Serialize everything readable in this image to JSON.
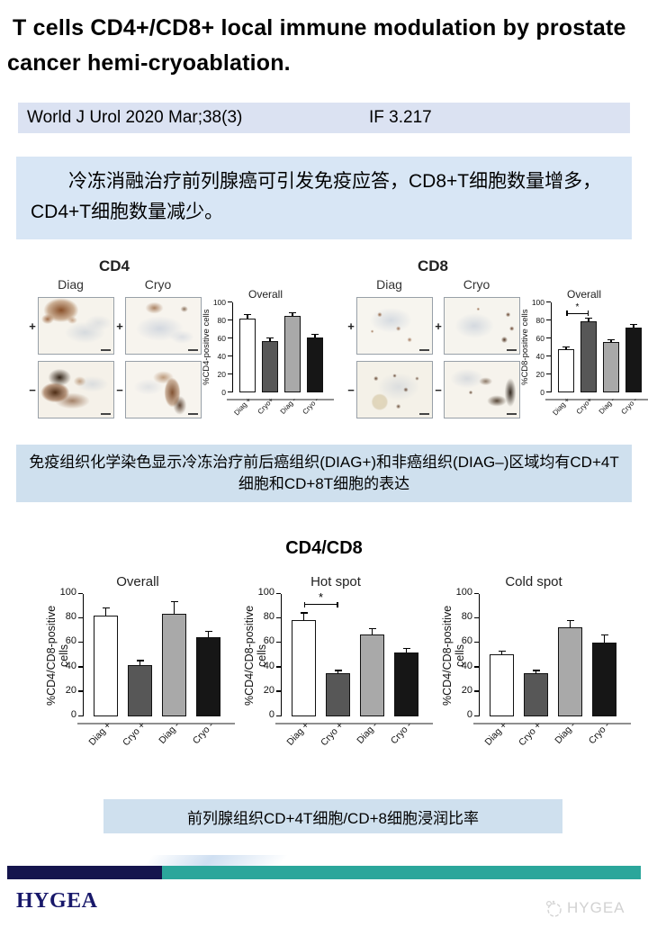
{
  "header": {
    "title": "T cells CD4+/CD8+ local immune modulation by prostate cancer hemi-cryoablation."
  },
  "journal": {
    "citation": "World J Urol 2020 Mar;38(3)",
    "impact_factor": "IF 3.217"
  },
  "summary": {
    "text": "冷冻消融治疗前列腺癌可引发免疫应答，CD8+T细胞数量增多，CD4+T细胞数量减少。"
  },
  "figure1": {
    "cd4": {
      "title": "CD4",
      "diag": "Diag",
      "cryo": "Cryo",
      "plus": "+",
      "minus": "−"
    },
    "cd8": {
      "title": "CD8",
      "diag": "Diag",
      "cryo": "Cryo",
      "plus": "+",
      "minus": "−"
    },
    "caption": "免疫组织化学染色显示冷冻治疗前后癌组织(DIAG+)和非癌组织(DIAG–)区域均有CD+4T细胞和CD+8T细胞的表达"
  },
  "figure2": {
    "title": "CD4/CD8",
    "caption": "前列腺组织CD+4T细胞/CD+8细胞浸润比率"
  },
  "footer": {
    "brand": "HYGEA",
    "watermark": "HYGEA",
    "navy": "#15154d",
    "teal": "#2ba69b"
  },
  "chart_data": [
    {
      "id": "cd4_overall",
      "type": "bar",
      "title": "Overall",
      "ylabel": "%CD4-positive cells",
      "categories": [
        "Diag +",
        "Cryo+",
        "Diag -",
        "Cryo -"
      ],
      "values": [
        82,
        57,
        85,
        61
      ],
      "errors": [
        5,
        4,
        4,
        4
      ],
      "ylim": [
        0,
        100
      ],
      "yticks": [
        0,
        20,
        40,
        60,
        80,
        100
      ],
      "bar_colors": [
        "#ffffff",
        "#575757",
        "#a9a9a9",
        "#161616"
      ],
      "sig": null
    },
    {
      "id": "cd8_overall",
      "type": "bar",
      "title": "Overall",
      "ylabel": "%CD8-positive cells",
      "categories": [
        "Diag +",
        "Cryo+",
        "Diag -",
        "Cryo -"
      ],
      "values": [
        48,
        79,
        56,
        72
      ],
      "errors": [
        3,
        4,
        3,
        4
      ],
      "ylim": [
        0,
        100
      ],
      "yticks": [
        0,
        20,
        40,
        60,
        80,
        100
      ],
      "bar_colors": [
        "#ffffff",
        "#575757",
        "#a9a9a9",
        "#161616"
      ],
      "sig": {
        "from": 0,
        "to": 1,
        "label": "*",
        "y": 87
      }
    },
    {
      "id": "ratio_overall",
      "type": "bar",
      "title": "Overall",
      "ylabel": "%CD4/CD8-positive cells",
      "categories": [
        "Diag +",
        "Cryo +",
        "Diag -",
        "Cryo -"
      ],
      "values": [
        82,
        42,
        84,
        65
      ],
      "errors": [
        7,
        4,
        10,
        5
      ],
      "ylim": [
        0,
        100
      ],
      "yticks": [
        0,
        20,
        40,
        60,
        80,
        100
      ],
      "bar_colors": [
        "#ffffff",
        "#575757",
        "#a9a9a9",
        "#161616"
      ],
      "sig": null
    },
    {
      "id": "ratio_hotspot",
      "type": "bar",
      "title": "Hot spot",
      "ylabel": "%CD4/CD8-positive cells",
      "categories": [
        "Diag +",
        "Cryo +",
        "Diag -",
        "Cryo -"
      ],
      "values": [
        79,
        35,
        67,
        52
      ],
      "errors": [
        6,
        3,
        5,
        4
      ],
      "ylim": [
        0,
        100
      ],
      "yticks": [
        0,
        20,
        40,
        60,
        80,
        100
      ],
      "bar_colors": [
        "#ffffff",
        "#575757",
        "#a9a9a9",
        "#161616"
      ],
      "sig": {
        "from": 0,
        "to": 1,
        "label": "*",
        "y": 91
      }
    },
    {
      "id": "ratio_coldspot",
      "type": "bar",
      "title": "Cold spot",
      "ylabel": "%CD4/CD8-positive cells",
      "categories": [
        "Diag +",
        "Cryo +",
        "Diag -",
        "Cryo -"
      ],
      "values": [
        51,
        35,
        73,
        60
      ],
      "errors": [
        3,
        3,
        6,
        7
      ],
      "ylim": [
        0,
        100
      ],
      "yticks": [
        0,
        20,
        40,
        60,
        80,
        100
      ],
      "bar_colors": [
        "#ffffff",
        "#575757",
        "#a9a9a9",
        "#161616"
      ],
      "sig": null
    }
  ]
}
